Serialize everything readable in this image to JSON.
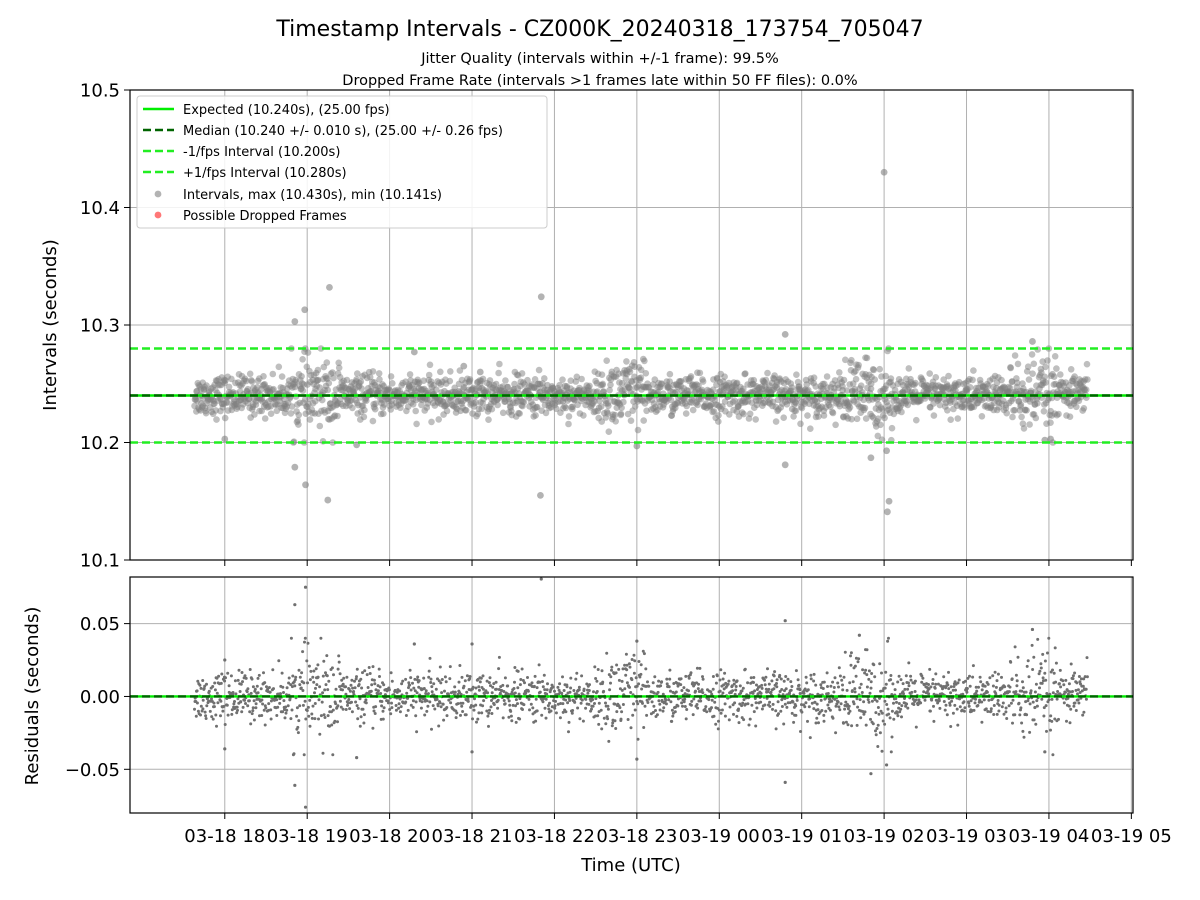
{
  "chart_data": {
    "type": "scatter",
    "title": "Timestamp Intervals - CZ000K_20240318_173754_705047",
    "subtitle_1": "Jitter Quality (intervals within +/-1 frame): 99.5%",
    "subtitle_2": "Dropped Frame Rate (intervals >1 frames late within 50 FF files): 0.0%",
    "xlabel": "Time (UTC)",
    "x_tick_labels": [
      "03-18 18",
      "03-18 19",
      "03-18 20",
      "03-18 21",
      "03-18 22",
      "03-18 23",
      "03-19 00",
      "03-19 01",
      "03-19 02",
      "03-19 03",
      "03-19 04",
      "03-19 05"
    ],
    "x_range_hours": [
      16.85,
      29.02
    ],
    "data_x_range_hours": [
      17.63,
      28.47
    ],
    "colors": {
      "expected": "#00ee00",
      "median": "#006400",
      "bounds": "#22ee22",
      "points": "#808080",
      "dropped": "#ff5555"
    },
    "top_panel": {
      "ylabel": "Intervals (seconds)",
      "ylim": [
        10.1,
        10.5
      ],
      "y_ticks": [
        10.1,
        10.2,
        10.3,
        10.4,
        10.5
      ],
      "y_tick_labels": [
        "10.1",
        "10.2",
        "10.3",
        "10.4",
        "10.5"
      ],
      "expected": 10.24,
      "median": 10.24,
      "lower_bound": 10.2,
      "upper_bound": 10.28,
      "legend": [
        "Expected (10.240s), (25.00 fps)",
        "Median (10.240 +/- 0.010 s), (25.00 +/- 0.26 fps)",
        "-1/fps Interval (10.200s)",
        "+1/fps Interval (10.280s)",
        "Intervals, max (10.430s), min (10.141s)",
        "Possible Dropped Frames"
      ],
      "outliers": [
        [
          18.85,
          10.303
        ],
        [
          18.97,
          10.313
        ],
        [
          19.27,
          10.332
        ],
        [
          18.85,
          10.179
        ],
        [
          18.98,
          10.164
        ],
        [
          19.25,
          10.151
        ],
        [
          21.84,
          10.324
        ],
        [
          21.83,
          10.155
        ],
        [
          24.8,
          10.292
        ],
        [
          24.8,
          10.181
        ],
        [
          26.0,
          10.43
        ],
        [
          26.03,
          10.193
        ],
        [
          26.06,
          10.15
        ],
        [
          26.04,
          10.141
        ],
        [
          25.84,
          10.187
        ],
        [
          18.0,
          10.203
        ],
        [
          19.6,
          10.198
        ],
        [
          20.3,
          10.277
        ],
        [
          23.0,
          10.197
        ],
        [
          27.8,
          10.286
        ],
        [
          27.95,
          10.202
        ],
        [
          28.02,
          10.203
        ],
        [
          21.1,
          10.26
        ],
        [
          20.9,
          10.265
        ]
      ]
    },
    "bottom_panel": {
      "ylabel": "Residuals (seconds)",
      "ylim": [
        -0.08,
        0.082
      ],
      "y_ticks": [
        -0.05,
        0.0,
        0.05
      ],
      "y_tick_labels": [
        "−0.05",
        "0.00",
        "0.05"
      ],
      "zero_line": 0.0,
      "outliers": [
        [
          18.85,
          0.063
        ],
        [
          18.98,
          0.075
        ],
        [
          18.85,
          -0.061
        ],
        [
          18.98,
          -0.076
        ],
        [
          21.84,
          0.084
        ],
        [
          24.8,
          0.052
        ],
        [
          24.8,
          -0.059
        ],
        [
          25.84,
          -0.053
        ],
        [
          26.03,
          -0.047
        ],
        [
          25.7,
          0.042
        ],
        [
          27.8,
          0.046
        ],
        [
          27.95,
          -0.038
        ],
        [
          19.6,
          -0.042
        ],
        [
          23.0,
          -0.043
        ],
        [
          23.0,
          0.038
        ],
        [
          21.0,
          -0.038
        ],
        [
          21.0,
          0.036
        ],
        [
          18.0,
          -0.036
        ],
        [
          18.0,
          0.025
        ],
        [
          20.3,
          0.036
        ]
      ]
    },
    "series": [
      {
        "name": "Intervals, max (10.430s), min (10.141s)",
        "n_points": 2100,
        "center": 10.24,
        "spread_sd": 0.0085,
        "high_spread_bands_hours": [
          [
            18.8,
            19.4
          ],
          [
            22.6,
            23.1
          ],
          [
            25.5,
            26.1
          ],
          [
            27.5,
            28.1
          ]
        ]
      }
    ]
  }
}
